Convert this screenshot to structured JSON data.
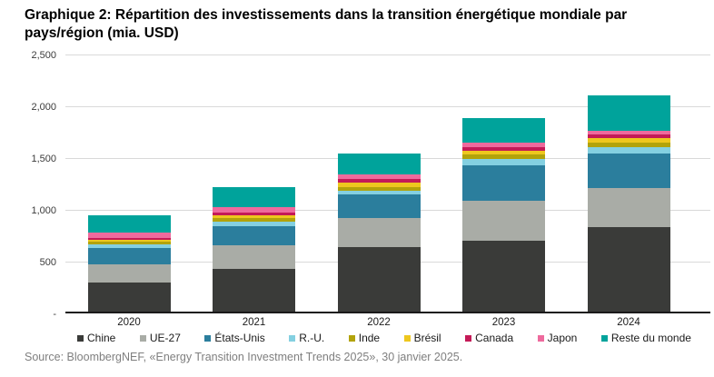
{
  "title": "Graphique 2: Répartition des investissements dans la transition énergétique mondiale par pays/région (mia. USD)",
  "source": "Source: BloombergNEF, «Energy Transition Investment Trends 2025», 30 janvier 2025.",
  "chart_data": {
    "type": "bar",
    "stacked": true,
    "title": "Graphique 2: Répartition des investissements dans la transition énergétique mondiale par pays/région (mia. USD)",
    "xlabel": "",
    "ylabel": "",
    "ylim": [
      0,
      2500
    ],
    "ytick_values": [
      0,
      500,
      1000,
      1500,
      2000,
      2500
    ],
    "ytick_labels": [
      "-",
      "500",
      "1,000",
      "1,500",
      "2,000",
      "2,500"
    ],
    "grid": true,
    "legend_position": "bottom",
    "categories": [
      "2020",
      "2021",
      "2022",
      "2023",
      "2024"
    ],
    "series": [
      {
        "name": "Chine",
        "color": "#3a3b39",
        "values": [
          280,
          410,
          620,
          680,
          820
        ]
      },
      {
        "name": "UE-27",
        "color": "#a9aca6",
        "values": [
          175,
          230,
          280,
          390,
          375
        ]
      },
      {
        "name": "États-Unis",
        "color": "#2b7e9d",
        "values": [
          160,
          185,
          235,
          345,
          330
        ]
      },
      {
        "name": "R.-U.",
        "color": "#84d0e1",
        "values": [
          35,
          45,
          35,
          60,
          65
        ]
      },
      {
        "name": "Inde",
        "color": "#b2a30b",
        "values": [
          25,
          30,
          35,
          45,
          40
        ]
      },
      {
        "name": "Brésil",
        "color": "#eec71e",
        "values": [
          20,
          30,
          40,
          35,
          42
        ]
      },
      {
        "name": "Canada",
        "color": "#c41a57",
        "values": [
          20,
          30,
          35,
          35,
          35
        ]
      },
      {
        "name": "Japon",
        "color": "#ee6a9d",
        "values": [
          45,
          50,
          45,
          40,
          40
        ]
      },
      {
        "name": "Reste du monde",
        "color": "#00a39b",
        "values": [
          170,
          190,
          205,
          240,
          340
        ]
      }
    ],
    "totals": [
      930,
      1200,
      1530,
      1870,
      2087
    ]
  }
}
